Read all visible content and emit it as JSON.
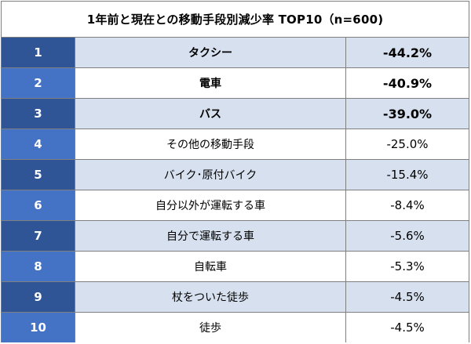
{
  "chart_data": {
    "type": "table",
    "title": "1年前と現在との移動手段別減少率 TOP10（n=600)",
    "rows": [
      {
        "rank": "1",
        "label": "タクシー",
        "value": "-44.2%",
        "num": -44.2
      },
      {
        "rank": "2",
        "label": "電車",
        "value": "-40.9%",
        "num": -40.9
      },
      {
        "rank": "3",
        "label": "バス",
        "value": "-39.0%",
        "num": -39.0
      },
      {
        "rank": "4",
        "label": "その他の移動手段",
        "value": "-25.0%",
        "num": -25.0
      },
      {
        "rank": "5",
        "label": "バイク･原付バイク",
        "value": "-15.4%",
        "num": -15.4
      },
      {
        "rank": "6",
        "label": "自分以外が運転する車",
        "value": "-8.4%",
        "num": -8.4
      },
      {
        "rank": "7",
        "label": "自分で運転する車",
        "value": "-5.6%",
        "num": -5.6
      },
      {
        "rank": "8",
        "label": "自転車",
        "value": "-5.3%",
        "num": -5.3
      },
      {
        "rank": "9",
        "label": "杖をついた徒歩",
        "value": "-4.5%",
        "num": -4.5
      },
      {
        "rank": "10",
        "label": "徒歩",
        "value": "-4.5%",
        "num": -4.5
      }
    ],
    "colors": {
      "rank_dark": "#2f5597",
      "rank_light": "#4472c4",
      "band_light_blue": "#d6e0ee",
      "band_white": "#ffffff",
      "border": "#7f7f7f"
    }
  }
}
